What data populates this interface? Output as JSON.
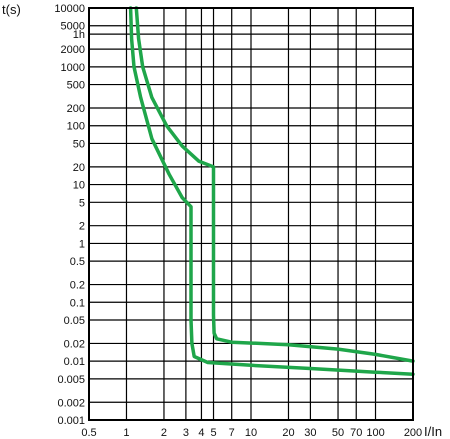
{
  "chart_data": {
    "type": "line",
    "title": "",
    "ylabel": "t(s)",
    "xlabel": "I/In",
    "xscale": "log",
    "yscale": "log",
    "xlim": [
      0.5,
      200
    ],
    "ylim": [
      0.001,
      10000
    ],
    "grid": true,
    "legend": "none",
    "y_ticks": [
      {
        "label": "10000",
        "value": 10000
      },
      {
        "label": "5000",
        "value": 5000
      },
      {
        "label": "1h",
        "value": 3600
      },
      {
        "label": "2000",
        "value": 2000
      },
      {
        "label": "1000",
        "value": 1000
      },
      {
        "label": "500",
        "value": 500
      },
      {
        "label": "200",
        "value": 200
      },
      {
        "label": "100",
        "value": 100
      },
      {
        "label": "50",
        "value": 50
      },
      {
        "label": "20",
        "value": 20
      },
      {
        "label": "10",
        "value": 10
      },
      {
        "label": "5",
        "value": 5
      },
      {
        "label": "2",
        "value": 2
      },
      {
        "label": "1",
        "value": 1
      },
      {
        "label": "0.5",
        "value": 0.5
      },
      {
        "label": "0.2",
        "value": 0.2
      },
      {
        "label": "0.1",
        "value": 0.1
      },
      {
        "label": "0.05",
        "value": 0.05
      },
      {
        "label": "0.02",
        "value": 0.02
      },
      {
        "label": "0.01",
        "value": 0.01
      },
      {
        "label": "0.005",
        "value": 0.005
      },
      {
        "label": "0.002",
        "value": 0.002
      },
      {
        "label": "0.001",
        "value": 0.001
      }
    ],
    "x_ticks": [
      {
        "label": "0.5",
        "value": 0.5
      },
      {
        "label": "1",
        "value": 1
      },
      {
        "label": "2",
        "value": 2
      },
      {
        "label": "3",
        "value": 3
      },
      {
        "label": "4",
        "value": 4
      },
      {
        "label": "5",
        "value": 5
      },
      {
        "label": "7",
        "value": 7
      },
      {
        "label": "10",
        "value": 10
      },
      {
        "label": "20",
        "value": 20
      },
      {
        "label": "30",
        "value": 30
      },
      {
        "label": "50",
        "value": 50
      },
      {
        "label": "70",
        "value": 70
      },
      {
        "label": "100",
        "value": 100
      },
      {
        "label": "200",
        "value": 200
      }
    ],
    "series": [
      {
        "color": "#1fa64a",
        "points": [
          [
            1.08,
            10000
          ],
          [
            1.1,
            3000
          ],
          [
            1.15,
            1000
          ],
          [
            1.3,
            300
          ],
          [
            1.6,
            60
          ],
          [
            2.2,
            15
          ],
          [
            2.8,
            6
          ],
          [
            3.3,
            4.2
          ],
          [
            3.3,
            0.05
          ],
          [
            3.35,
            0.02
          ],
          [
            3.5,
            0.012
          ],
          [
            4.5,
            0.0095
          ],
          [
            10,
            0.0085
          ],
          [
            30,
            0.0075
          ],
          [
            100,
            0.0065
          ],
          [
            200,
            0.006
          ]
        ]
      },
      {
        "color": "#1fa64a",
        "points": [
          [
            1.2,
            10000
          ],
          [
            1.25,
            3000
          ],
          [
            1.35,
            1000
          ],
          [
            1.6,
            300
          ],
          [
            2.1,
            100
          ],
          [
            2.8,
            45
          ],
          [
            3.8,
            25
          ],
          [
            5.0,
            20
          ],
          [
            5.0,
            0.06
          ],
          [
            5.05,
            0.03
          ],
          [
            5.3,
            0.024
          ],
          [
            7,
            0.021
          ],
          [
            20,
            0.019
          ],
          [
            50,
            0.016
          ],
          [
            100,
            0.013
          ],
          [
            200,
            0.01
          ]
        ]
      }
    ]
  }
}
